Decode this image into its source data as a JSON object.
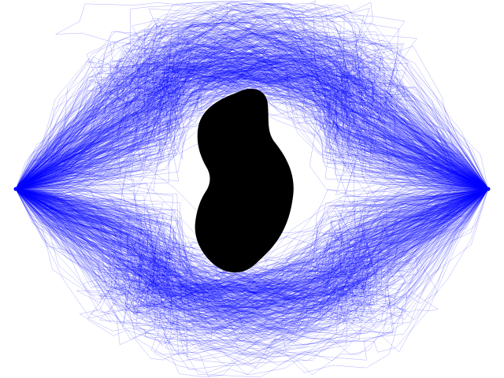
{
  "canvas": {
    "background_color": "#ffffff"
  },
  "path_color": "#0000ff",
  "obstacle_color": "#000000",
  "start_marker": "left-endpoint",
  "end_marker": "right-endpoint",
  "obstacle_name": "black-obstacle"
}
